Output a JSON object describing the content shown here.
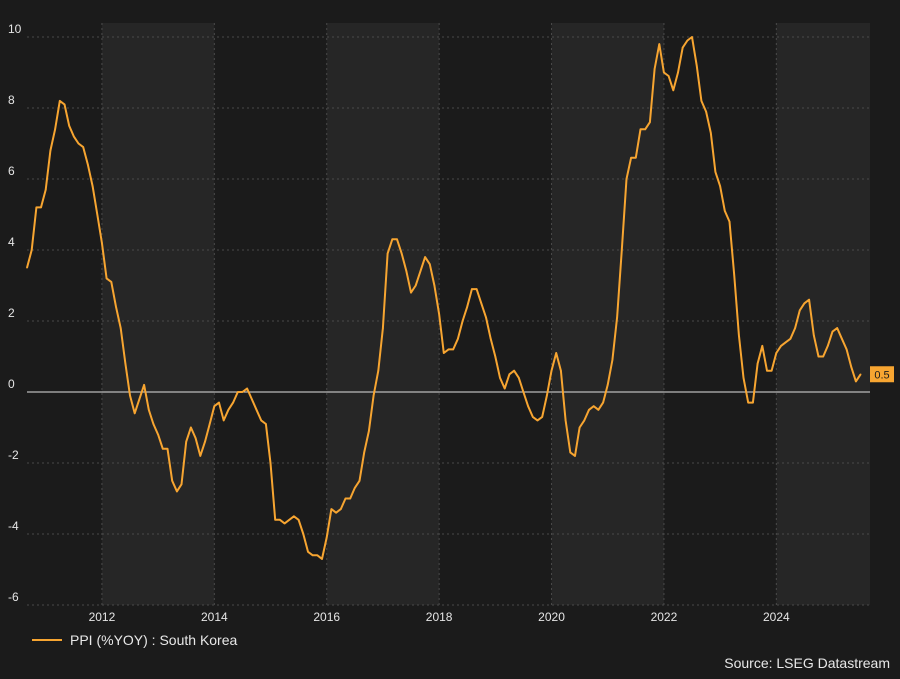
{
  "chart_data": {
    "type": "line",
    "title": "",
    "xlabel": "",
    "ylabel": "",
    "ylim": [
      -6,
      10
    ],
    "y_ticks": [
      -6,
      -4,
      -2,
      0,
      2,
      4,
      6,
      8,
      10
    ],
    "x_tick_labels": [
      "2012",
      "2014",
      "2016",
      "2018",
      "2020",
      "2022",
      "2024"
    ],
    "x_range": [
      "2010-09",
      "2025-09"
    ],
    "grid": true,
    "legend_position": "bottom-left",
    "series": [
      {
        "name": "PPI (%YOY) : South Korea",
        "color": "#f7a531",
        "last_value_label": "0.5",
        "points": [
          [
            "2010-09",
            3.5
          ],
          [
            "2010-10",
            4.0
          ],
          [
            "2010-11",
            5.2
          ],
          [
            "2010-12",
            5.2
          ],
          [
            "2011-01",
            5.7
          ],
          [
            "2011-02",
            6.8
          ],
          [
            "2011-03",
            7.4
          ],
          [
            "2011-04",
            8.2
          ],
          [
            "2011-05",
            8.1
          ],
          [
            "2011-06",
            7.5
          ],
          [
            "2011-07",
            7.2
          ],
          [
            "2011-08",
            7.0
          ],
          [
            "2011-09",
            6.9
          ],
          [
            "2011-10",
            6.4
          ],
          [
            "2011-11",
            5.8
          ],
          [
            "2011-12",
            5.0
          ],
          [
            "2012-01",
            4.2
          ],
          [
            "2012-02",
            3.2
          ],
          [
            "2012-03",
            3.1
          ],
          [
            "2012-04",
            2.4
          ],
          [
            "2012-05",
            1.8
          ],
          [
            "2012-06",
            0.8
          ],
          [
            "2012-07",
            -0.1
          ],
          [
            "2012-08",
            -0.6
          ],
          [
            "2012-09",
            -0.2
          ],
          [
            "2012-10",
            0.2
          ],
          [
            "2012-11",
            -0.5
          ],
          [
            "2012-12",
            -0.9
          ],
          [
            "2013-01",
            -1.2
          ],
          [
            "2013-02",
            -1.6
          ],
          [
            "2013-03",
            -1.6
          ],
          [
            "2013-04",
            -2.5
          ],
          [
            "2013-05",
            -2.8
          ],
          [
            "2013-06",
            -2.6
          ],
          [
            "2013-07",
            -1.4
          ],
          [
            "2013-08",
            -1.0
          ],
          [
            "2013-09",
            -1.3
          ],
          [
            "2013-10",
            -1.8
          ],
          [
            "2013-11",
            -1.4
          ],
          [
            "2013-12",
            -0.9
          ],
          [
            "2014-01",
            -0.4
          ],
          [
            "2014-02",
            -0.3
          ],
          [
            "2014-03",
            -0.8
          ],
          [
            "2014-04",
            -0.5
          ],
          [
            "2014-05",
            -0.3
          ],
          [
            "2014-06",
            0.0
          ],
          [
            "2014-07",
            0.0
          ],
          [
            "2014-08",
            0.1
          ],
          [
            "2014-09",
            -0.2
          ],
          [
            "2014-10",
            -0.5
          ],
          [
            "2014-11",
            -0.8
          ],
          [
            "2014-12",
            -0.9
          ],
          [
            "2015-01",
            -2.0
          ],
          [
            "2015-02",
            -3.6
          ],
          [
            "2015-03",
            -3.6
          ],
          [
            "2015-04",
            -3.7
          ],
          [
            "2015-05",
            -3.6
          ],
          [
            "2015-06",
            -3.5
          ],
          [
            "2015-07",
            -3.6
          ],
          [
            "2015-08",
            -4.0
          ],
          [
            "2015-09",
            -4.5
          ],
          [
            "2015-10",
            -4.6
          ],
          [
            "2015-11",
            -4.6
          ],
          [
            "2015-12",
            -4.7
          ],
          [
            "2016-01",
            -4.1
          ],
          [
            "2016-02",
            -3.3
          ],
          [
            "2016-03",
            -3.4
          ],
          [
            "2016-04",
            -3.3
          ],
          [
            "2016-05",
            -3.0
          ],
          [
            "2016-06",
            -3.0
          ],
          [
            "2016-07",
            -2.7
          ],
          [
            "2016-08",
            -2.5
          ],
          [
            "2016-09",
            -1.7
          ],
          [
            "2016-10",
            -1.1
          ],
          [
            "2016-11",
            -0.1
          ],
          [
            "2016-12",
            0.6
          ],
          [
            "2017-01",
            1.8
          ],
          [
            "2017-02",
            3.9
          ],
          [
            "2017-03",
            4.3
          ],
          [
            "2017-04",
            4.3
          ],
          [
            "2017-05",
            3.9
          ],
          [
            "2017-06",
            3.4
          ],
          [
            "2017-07",
            2.8
          ],
          [
            "2017-08",
            3.0
          ],
          [
            "2017-09",
            3.4
          ],
          [
            "2017-10",
            3.8
          ],
          [
            "2017-11",
            3.6
          ],
          [
            "2017-12",
            3.0
          ],
          [
            "2018-01",
            2.2
          ],
          [
            "2018-02",
            1.1
          ],
          [
            "2018-03",
            1.2
          ],
          [
            "2018-04",
            1.2
          ],
          [
            "2018-05",
            1.5
          ],
          [
            "2018-06",
            2.0
          ],
          [
            "2018-07",
            2.4
          ],
          [
            "2018-08",
            2.9
          ],
          [
            "2018-09",
            2.9
          ],
          [
            "2018-10",
            2.5
          ],
          [
            "2018-11",
            2.1
          ],
          [
            "2018-12",
            1.5
          ],
          [
            "2019-01",
            1.0
          ],
          [
            "2019-02",
            0.4
          ],
          [
            "2019-03",
            0.1
          ],
          [
            "2019-04",
            0.5
          ],
          [
            "2019-05",
            0.6
          ],
          [
            "2019-06",
            0.4
          ],
          [
            "2019-07",
            0.0
          ],
          [
            "2019-08",
            -0.4
          ],
          [
            "2019-09",
            -0.7
          ],
          [
            "2019-10",
            -0.8
          ],
          [
            "2019-11",
            -0.7
          ],
          [
            "2019-12",
            -0.1
          ],
          [
            "2020-01",
            0.6
          ],
          [
            "2020-02",
            1.1
          ],
          [
            "2020-03",
            0.6
          ],
          [
            "2020-04",
            -0.8
          ],
          [
            "2020-05",
            -1.7
          ],
          [
            "2020-06",
            -1.8
          ],
          [
            "2020-07",
            -1.0
          ],
          [
            "2020-08",
            -0.8
          ],
          [
            "2020-09",
            -0.5
          ],
          [
            "2020-10",
            -0.4
          ],
          [
            "2020-11",
            -0.5
          ],
          [
            "2020-12",
            -0.3
          ],
          [
            "2021-01",
            0.2
          ],
          [
            "2021-02",
            0.9
          ],
          [
            "2021-03",
            2.1
          ],
          [
            "2021-04",
            4.0
          ],
          [
            "2021-05",
            6.0
          ],
          [
            "2021-06",
            6.6
          ],
          [
            "2021-07",
            6.6
          ],
          [
            "2021-08",
            7.4
          ],
          [
            "2021-09",
            7.4
          ],
          [
            "2021-10",
            7.6
          ],
          [
            "2021-11",
            9.1
          ],
          [
            "2021-12",
            9.8
          ],
          [
            "2022-01",
            9.0
          ],
          [
            "2022-02",
            8.9
          ],
          [
            "2022-03",
            8.5
          ],
          [
            "2022-04",
            9.0
          ],
          [
            "2022-05",
            9.7
          ],
          [
            "2022-06",
            9.9
          ],
          [
            "2022-07",
            10.0
          ],
          [
            "2022-08",
            9.2
          ],
          [
            "2022-09",
            8.2
          ],
          [
            "2022-10",
            7.9
          ],
          [
            "2022-11",
            7.3
          ],
          [
            "2022-12",
            6.2
          ],
          [
            "2023-01",
            5.8
          ],
          [
            "2023-02",
            5.1
          ],
          [
            "2023-03",
            4.8
          ],
          [
            "2023-04",
            3.3
          ],
          [
            "2023-05",
            1.6
          ],
          [
            "2023-06",
            0.4
          ],
          [
            "2023-07",
            -0.3
          ],
          [
            "2023-08",
            -0.3
          ],
          [
            "2023-09",
            0.8
          ],
          [
            "2023-10",
            1.3
          ],
          [
            "2023-11",
            0.6
          ],
          [
            "2023-12",
            0.6
          ],
          [
            "2024-01",
            1.1
          ],
          [
            "2024-02",
            1.3
          ],
          [
            "2024-03",
            1.4
          ],
          [
            "2024-04",
            1.5
          ],
          [
            "2024-05",
            1.8
          ],
          [
            "2024-06",
            2.3
          ],
          [
            "2024-07",
            2.5
          ],
          [
            "2024-08",
            2.6
          ],
          [
            "2024-09",
            1.6
          ],
          [
            "2024-10",
            1.0
          ],
          [
            "2024-11",
            1.0
          ],
          [
            "2024-12",
            1.3
          ],
          [
            "2025-01",
            1.7
          ],
          [
            "2025-02",
            1.8
          ],
          [
            "2025-03",
            1.5
          ],
          [
            "2025-04",
            1.2
          ],
          [
            "2025-05",
            0.7
          ],
          [
            "2025-06",
            0.3
          ],
          [
            "2025-07",
            0.5
          ]
        ]
      }
    ]
  },
  "footer": {
    "legend_label": "PPI (%YOY) : South Korea",
    "source": "Source: LSEG Datastream"
  },
  "colors": {
    "background": "#1b1b1b",
    "band": "#262626",
    "grid": "#4a4a4a",
    "zero_line": "#e0e0e0",
    "line": "#f7a531"
  }
}
